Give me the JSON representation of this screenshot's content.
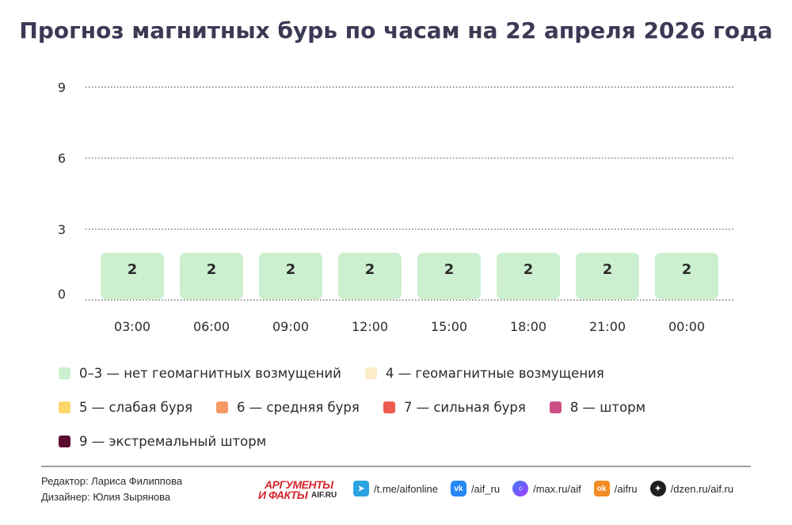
{
  "title": "Прогноз магнитных бурь по часам на 22 апреля 2026 года",
  "chart_data": {
    "type": "bar",
    "categories": [
      "03:00",
      "06:00",
      "09:00",
      "12:00",
      "15:00",
      "18:00",
      "21:00",
      "00:00"
    ],
    "values": [
      2,
      2,
      2,
      2,
      2,
      2,
      2,
      2
    ],
    "data_labels": [
      "2",
      "2",
      "2",
      "2",
      "2",
      "2",
      "2",
      "2"
    ],
    "yticks": [
      "0",
      "3",
      "6",
      "9"
    ],
    "ylim": [
      0,
      9
    ],
    "grid": "dotted horizontal",
    "bar_color": "#ccf0cf"
  },
  "legend": [
    [
      {
        "label": "0–3 — нет геомагнитных возмущений",
        "color": "#ccf0cf"
      },
      {
        "label": "4 — геомагнитные возмущения",
        "color": "#fbedc6"
      }
    ],
    [
      {
        "label": "5 — слабая буря",
        "color": "#fbd66a"
      },
      {
        "label": "6 — средняя буря",
        "color": "#f59a64"
      },
      {
        "label": "7 — сильная буря",
        "color": "#ee5b51"
      },
      {
        "label": "8 — шторм",
        "color": "#cc4f86"
      }
    ],
    [
      {
        "label": "9 — экстремальный шторм",
        "color": "#5c0c30"
      }
    ]
  ],
  "footer": {
    "editor": "Редактор: Лариса Филиппова",
    "designer": "Дизайнер: Юлия Зырянова",
    "logo_top": "АРГУМЕНТЫ",
    "logo_bottom": "И ФАКТЫ",
    "logo_sub": "AIF.RU",
    "socials": [
      {
        "icon": "telegram-icon",
        "glyph": "➤",
        "text": "/t.me/aifonline",
        "cls": "ico-tg"
      },
      {
        "icon": "vk-icon",
        "glyph": "vk",
        "text": "/aif_ru",
        "cls": "ico-vk"
      },
      {
        "icon": "max-icon",
        "glyph": "○",
        "text": "/max.ru/aif",
        "cls": "ico-max"
      },
      {
        "icon": "odnoklassniki-icon",
        "glyph": "ok",
        "text": "/aifru",
        "cls": "ico-ok"
      },
      {
        "icon": "dzen-icon",
        "glyph": "✦",
        "text": "/dzen.ru/aif.ru",
        "cls": "ico-dzen"
      }
    ]
  }
}
